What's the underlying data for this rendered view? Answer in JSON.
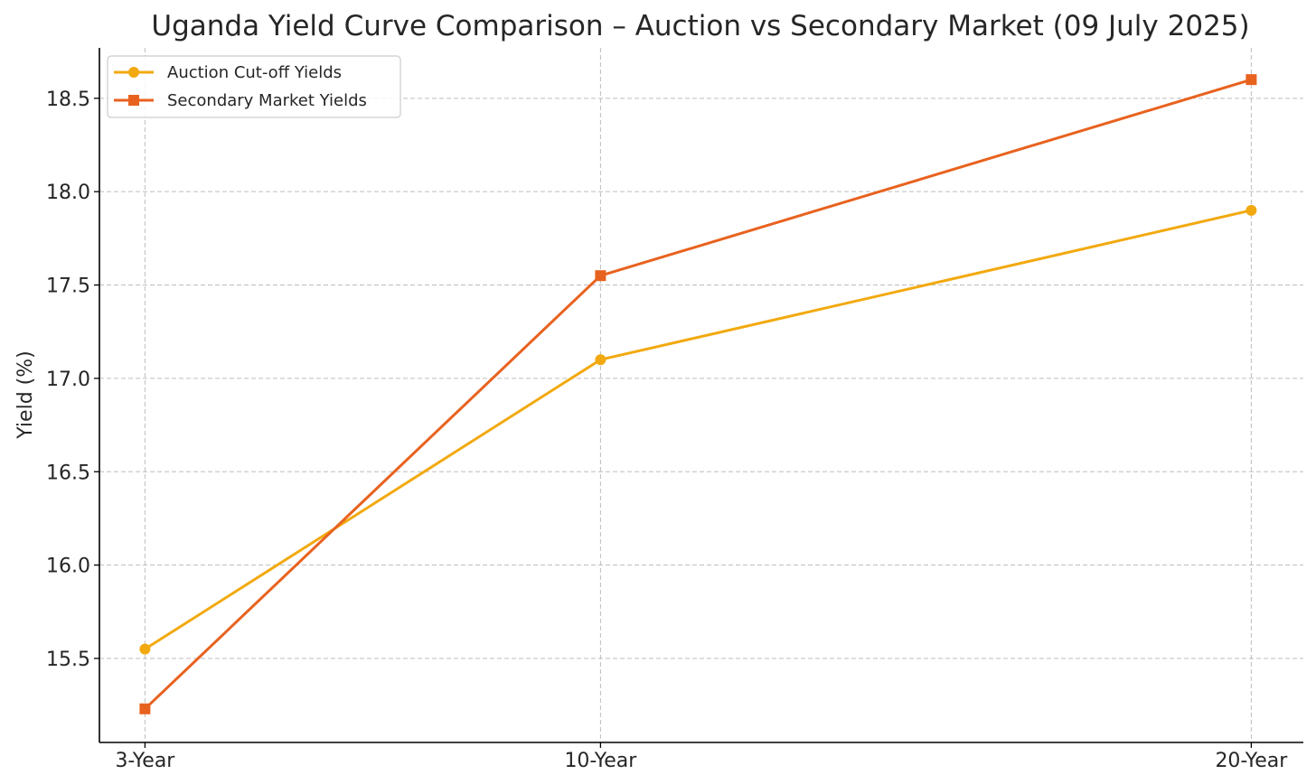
{
  "chart_data": {
    "type": "line",
    "title": "Uganda Yield Curve Comparison – Auction vs Secondary Market (09 July 2025)",
    "xlabel": "",
    "ylabel": "Yield (%)",
    "categories": [
      "3-Year",
      "10-Year",
      "20-Year"
    ],
    "x": [
      3,
      10,
      20
    ],
    "xlim": [
      2.3,
      20.8
    ],
    "ylim": [
      15.05,
      18.77
    ],
    "yticks": [
      15.5,
      16.0,
      16.5,
      17.0,
      17.5,
      18.0,
      18.5
    ],
    "ytick_labels": [
      "15.5",
      "16.0",
      "16.5",
      "17.0",
      "17.5",
      "18.0",
      "18.5"
    ],
    "grid": true,
    "legend_position": "top-left",
    "series": [
      {
        "name": "Auction Cut-off Yields",
        "values": [
          15.55,
          17.1,
          17.9
        ],
        "color": "#f2a90f",
        "marker": "circle"
      },
      {
        "name": "Secondary Market Yields",
        "values": [
          15.23,
          17.55,
          18.6
        ],
        "color": "#e8621f",
        "marker": "square"
      }
    ]
  }
}
